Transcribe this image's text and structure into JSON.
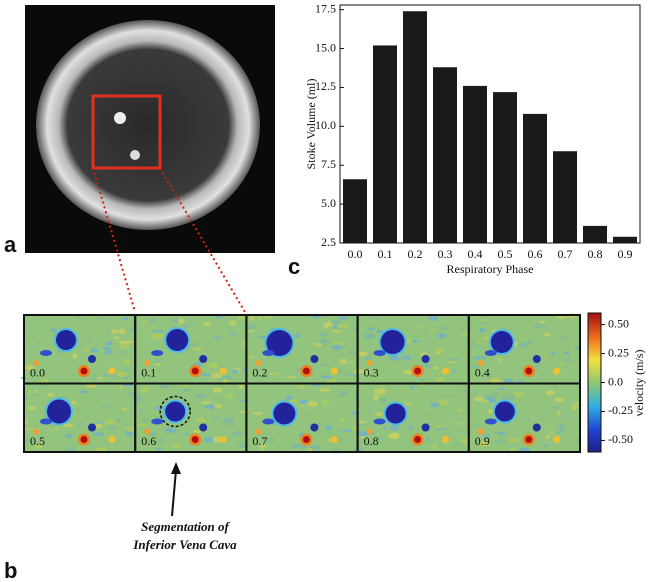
{
  "panel_labels": [
    "a",
    "b",
    "c"
  ],
  "chart_data": {
    "type": "bar",
    "xlabel": "Respiratory Phase",
    "ylabel": "Stoke Volume (ml)",
    "categories": [
      "0.0",
      "0.1",
      "0.2",
      "0.3",
      "0.4",
      "0.5",
      "0.6",
      "0.7",
      "0.8",
      "0.9"
    ],
    "values": [
      6.6,
      15.2,
      17.4,
      13.8,
      12.6,
      12.2,
      10.8,
      8.4,
      3.6,
      2.9
    ],
    "color": "#1a1a1a",
    "ylim": [
      2.5,
      17.8
    ],
    "yticks": [
      2.5,
      {
        "value": 5,
        "label": "5.0"
      },
      7.5,
      {
        "value": 10,
        "label": "10.0"
      },
      12.5,
      {
        "value": 15,
        "label": "15.0"
      },
      17.5
    ]
  },
  "velocity_maps": {
    "phase_labels": [
      "0.0",
      "0.1",
      "0.2",
      "0.3",
      "0.4",
      "0.5",
      "0.6",
      "0.7",
      "0.8",
      "0.9"
    ],
    "annotation": [
      "Segmentation of",
      "Inferior Vena Cava"
    ]
  },
  "colorbar": {
    "label": "velocity (m/s)",
    "lim": [
      -0.6,
      0.6
    ],
    "ticks": [
      {
        "value": 0.5,
        "label": "0.50"
      },
      0.25,
      {
        "value": 0,
        "label": "0.0"
      },
      -0.25,
      {
        "value": -0.5,
        "label": "-0.50"
      }
    ]
  }
}
